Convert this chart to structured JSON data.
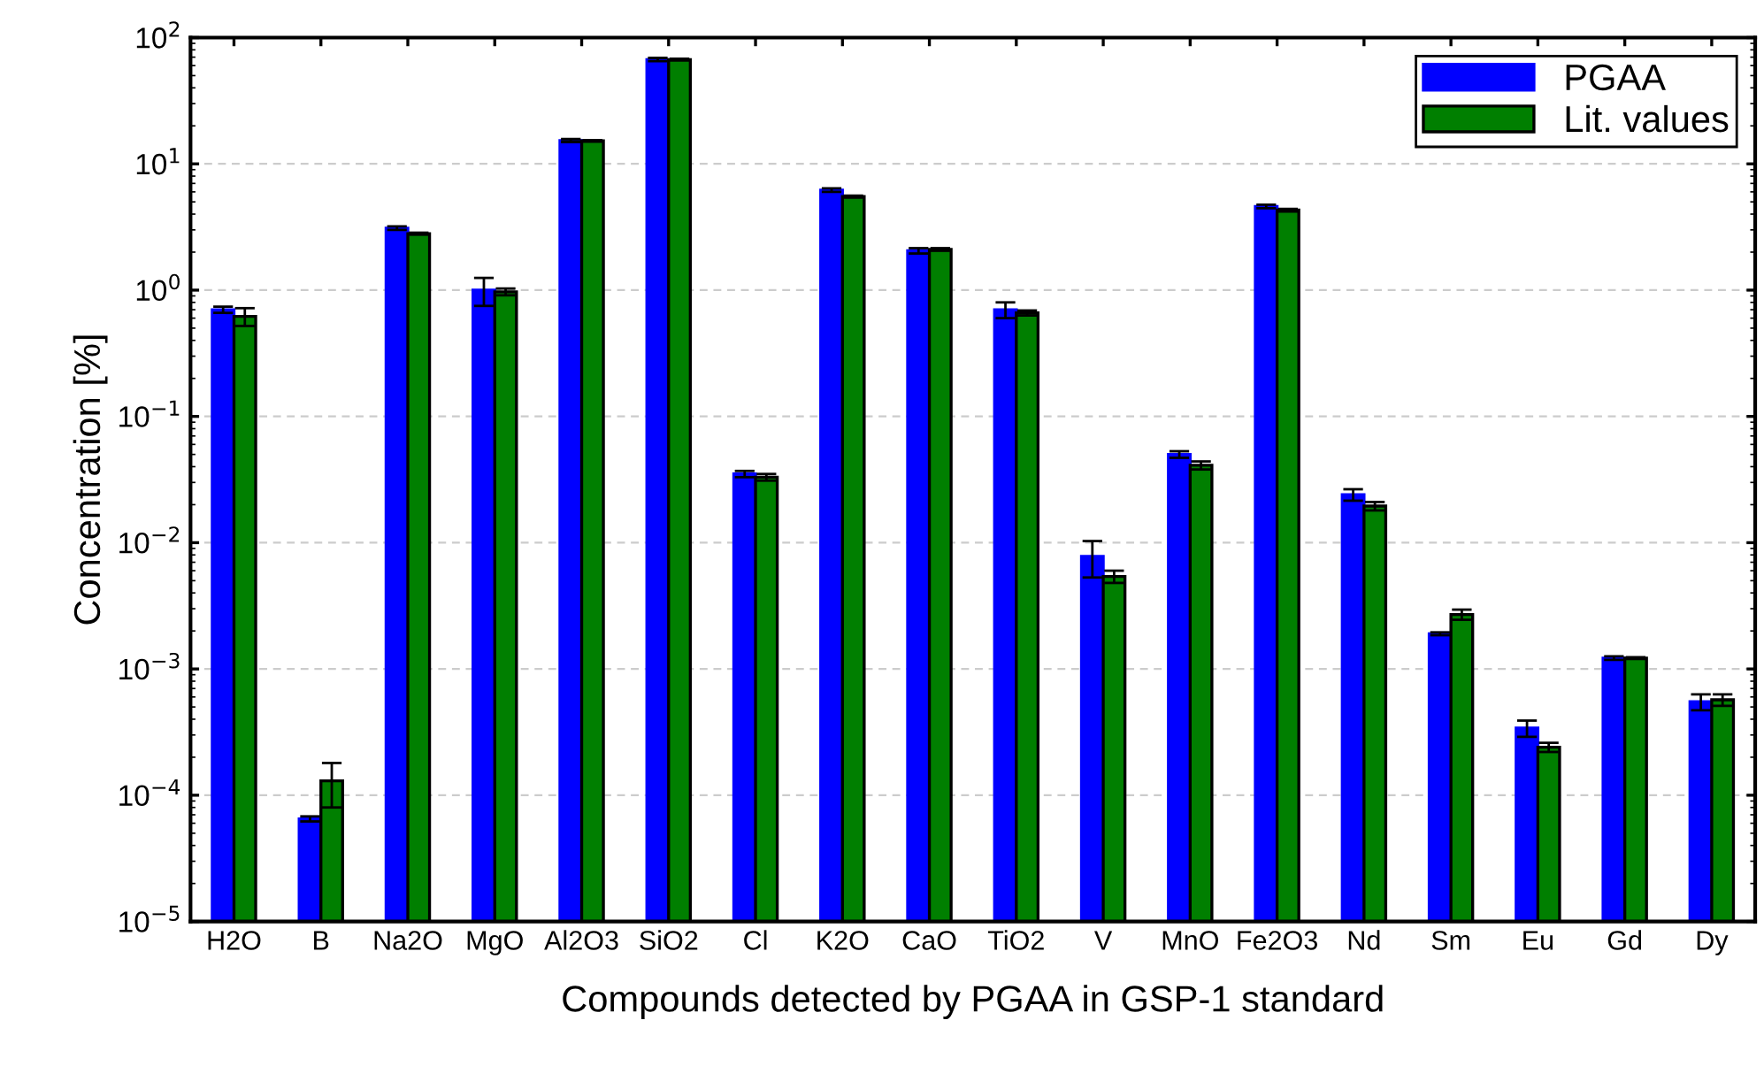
{
  "chart_data": {
    "type": "bar",
    "xlabel": "Compounds detected by PGAA in GSP-1 standard",
    "ylabel": "Concentration [%]",
    "categories": [
      "H2O",
      "B",
      "Na2O",
      "MgO",
      "Al2O3",
      "SiO2",
      "Cl",
      "K2O",
      "CaO",
      "TiO2",
      "V",
      "MnO",
      "Fe2O3",
      "Nd",
      "Sm",
      "Eu",
      "Gd",
      "Dy"
    ],
    "series": [
      {
        "name": "PGAA",
        "color": "#0000ff",
        "values": [
          0.7,
          6.5e-05,
          3.1,
          1.0,
          15.3,
          67,
          0.035,
          6.2,
          2.05,
          0.7,
          0.0078,
          0.05,
          4.6,
          0.024,
          0.0019,
          0.00034,
          0.00122,
          0.00055
        ],
        "errors": [
          0.04,
          3e-06,
          0.1,
          0.25,
          0.4,
          2,
          0.002,
          0.2,
          0.1,
          0.1,
          0.0025,
          0.003,
          0.15,
          0.0025,
          5e-05,
          5e-05,
          4e-05,
          8e-05
        ]
      },
      {
        "name": "Lit. values",
        "color": "#007f00",
        "values": [
          0.62,
          0.00013,
          2.8,
          0.97,
          15.2,
          67,
          0.033,
          5.5,
          2.1,
          0.66,
          0.0054,
          0.041,
          4.3,
          0.0195,
          0.0027,
          0.00024,
          0.00122,
          0.00057
        ],
        "errors": [
          0.1,
          5e-05,
          0.05,
          0.06,
          0.2,
          1,
          0.002,
          0.1,
          0.05,
          0.03,
          0.0006,
          0.003,
          0.1,
          0.0015,
          0.00025,
          2e-05,
          2e-05,
          6e-05
        ]
      }
    ],
    "log": true,
    "ylim": [
      1e-05,
      100
    ],
    "yticks": [
      {
        "value": 1e-05,
        "label": "10$^{−5}$"
      },
      {
        "value": 0.0001,
        "label": "10$^{−4}$"
      },
      {
        "value": 0.001,
        "label": "10$^{−3}$"
      },
      {
        "value": 0.01,
        "label": "10$^{−2}$"
      },
      {
        "value": 0.1,
        "label": "10$^{−1}$"
      },
      {
        "value": 1,
        "label": "10$^{0}$"
      },
      {
        "value": 10,
        "label": "10$^{1}$"
      },
      {
        "value": 100,
        "label": "10$^{2}$"
      }
    ],
    "grid": "y",
    "legend": "top right"
  }
}
